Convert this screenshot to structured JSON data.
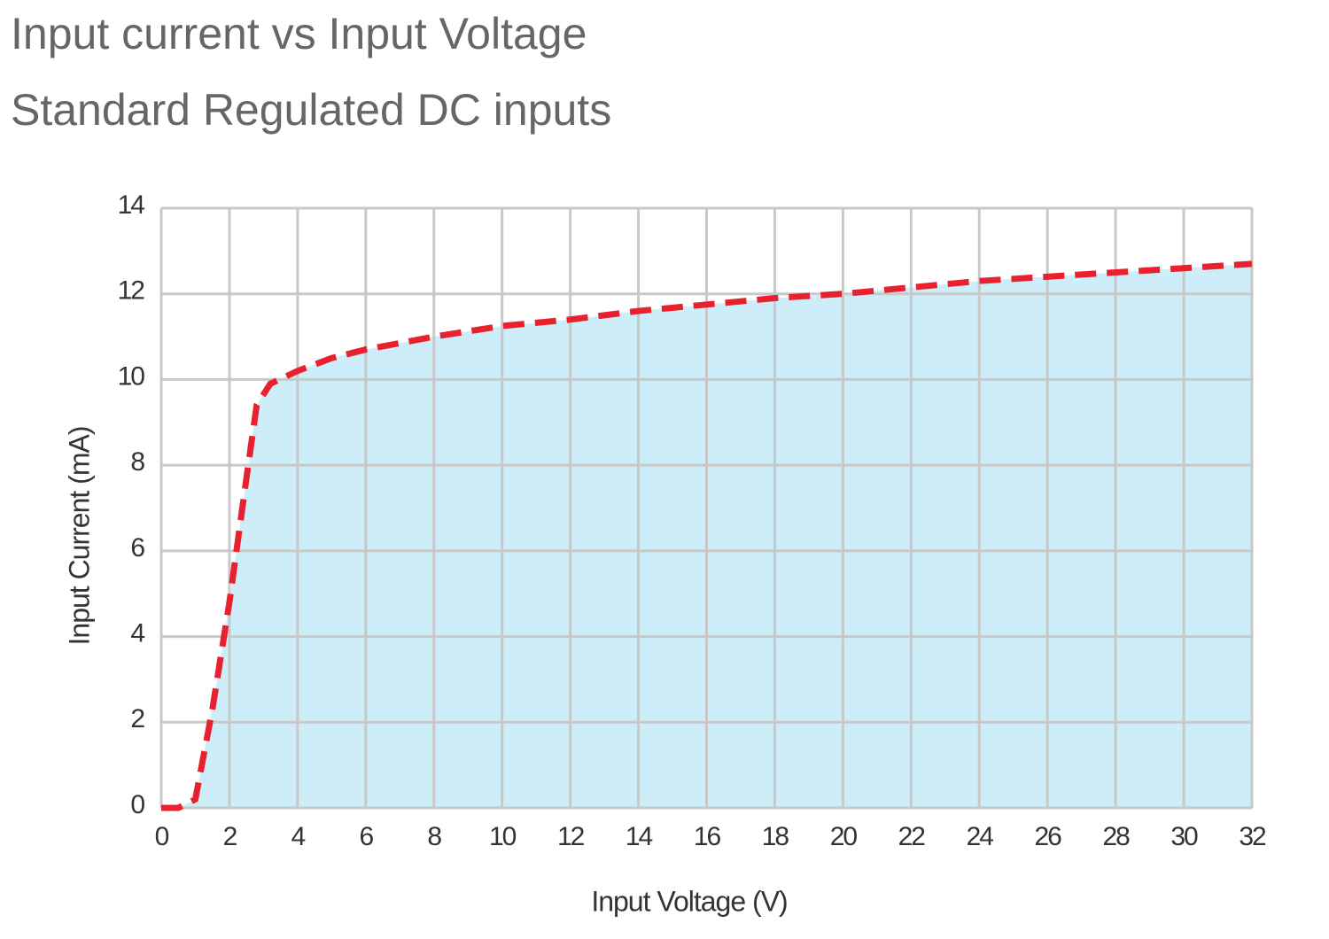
{
  "chart_data": {
    "type": "area",
    "title": "Input current vs Input Voltage",
    "subtitle": "Standard Regulated DC inputs",
    "x_label": "Input Voltage (V)",
    "y_label": "Input Current (mA)",
    "x": [
      0,
      0.5,
      1,
      1.5,
      2,
      2.5,
      2.8,
      3.2,
      4,
      5,
      6,
      8,
      10,
      12,
      14,
      16,
      18,
      20,
      22,
      24,
      26,
      28,
      30,
      32
    ],
    "series": [
      {
        "name": "Input Current",
        "line_color": "#e8212e",
        "fill_color": "#cdeef8",
        "values": [
          0,
          0,
          0.2,
          2.3,
          4.8,
          7.7,
          9.4,
          9.9,
          10.2,
          10.5,
          10.7,
          11,
          11.25,
          11.4,
          11.6,
          11.75,
          11.9,
          12,
          12.15,
          12.3,
          12.4,
          12.5,
          12.6,
          12.7
        ]
      }
    ],
    "xlim": [
      0,
      32
    ],
    "xticks": [
      0,
      2,
      4,
      6,
      8,
      10,
      12,
      14,
      16,
      18,
      20,
      22,
      24,
      26,
      28,
      30,
      32
    ],
    "ylim": [
      0,
      14
    ],
    "yticks": [
      0,
      2,
      4,
      6,
      8,
      10,
      12,
      14
    ],
    "grid": true,
    "dashed": true
  }
}
